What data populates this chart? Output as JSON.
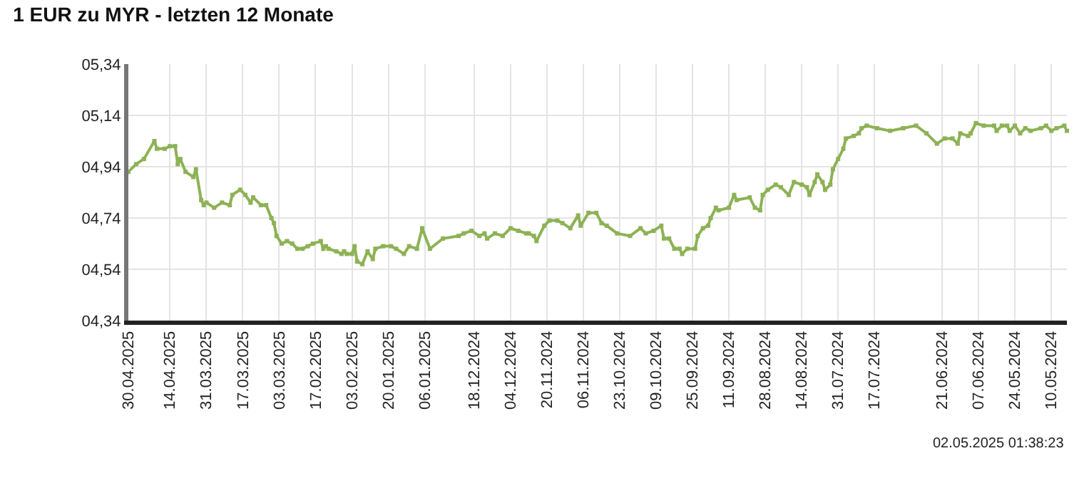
{
  "chart_data": {
    "type": "line",
    "title": "1 EUR zu MYR - letzten 12 Monate",
    "annotations": [
      "02.05.2025 01:38:23"
    ],
    "x": [
      "2025-04-30",
      "2025-04-27",
      "2025-04-24",
      "2025-04-20",
      "2025-04-19",
      "2025-04-16",
      "2025-04-14",
      "2025-04-12",
      "2025-04-11",
      "2025-04-10",
      "2025-04-08",
      "2025-04-05",
      "2025-04-04",
      "2025-04-02",
      "2025-04-01",
      "2025-03-31",
      "2025-03-28",
      "2025-03-25",
      "2025-03-22",
      "2025-03-21",
      "2025-03-18",
      "2025-03-16",
      "2025-03-14",
      "2025-03-13",
      "2025-03-10",
      "2025-03-08",
      "2025-03-06",
      "2025-03-05",
      "2025-03-04",
      "2025-03-02",
      "2025-02-28",
      "2025-02-26",
      "2025-02-24",
      "2025-02-22",
      "2025-02-20",
      "2025-02-18",
      "2025-02-15",
      "2025-02-14",
      "2025-02-13",
      "2025-02-12",
      "2025-02-09",
      "2025-02-07",
      "2025-02-06",
      "2025-02-05",
      "2025-02-03",
      "2025-02-02",
      "2025-02-01",
      "2025-01-30",
      "2025-01-28",
      "2025-01-26",
      "2025-01-25",
      "2025-01-22",
      "2025-01-19",
      "2025-01-17",
      "2025-01-14",
      "2025-01-12",
      "2025-01-09",
      "2025-01-07",
      "2025-01-04",
      "2024-12-30",
      "2024-12-24",
      "2024-12-22",
      "2024-12-19",
      "2024-12-16",
      "2024-12-14",
      "2024-12-13",
      "2024-12-10",
      "2024-12-07",
      "2024-12-04",
      "2024-12-01",
      "2024-11-28",
      "2024-11-27",
      "2024-11-25",
      "2024-11-24",
      "2024-11-21",
      "2024-11-19",
      "2024-11-16",
      "2024-11-14",
      "2024-11-11",
      "2024-11-08",
      "2024-11-07",
      "2024-11-04",
      "2024-11-01",
      "2024-10-30",
      "2024-10-28",
      "2024-10-24",
      "2024-10-19",
      "2024-10-15",
      "2024-10-13",
      "2024-10-10",
      "2024-10-07",
      "2024-10-06",
      "2024-10-04",
      "2024-10-02",
      "2024-09-30",
      "2024-09-29",
      "2024-09-27",
      "2024-09-24",
      "2024-09-23",
      "2024-09-21",
      "2024-09-19",
      "2024-09-18",
      "2024-09-16",
      "2024-09-15",
      "2024-09-11",
      "2024-09-09",
      "2024-09-08",
      "2024-09-03",
      "2024-09-01",
      "2024-08-30",
      "2024-08-29",
      "2024-08-27",
      "2024-08-24",
      "2024-08-22",
      "2024-08-19",
      "2024-08-17",
      "2024-08-14",
      "2024-08-12",
      "2024-08-11",
      "2024-08-09",
      "2024-08-08",
      "2024-08-06",
      "2024-08-05",
      "2024-08-03",
      "2024-08-02",
      "2024-07-31",
      "2024-07-29",
      "2024-07-28",
      "2024-07-25",
      "2024-07-23",
      "2024-07-22",
      "2024-07-20",
      "2024-07-16",
      "2024-07-11",
      "2024-07-06",
      "2024-07-01",
      "2024-06-27",
      "2024-06-23",
      "2024-06-20",
      "2024-06-17",
      "2024-06-15",
      "2024-06-14",
      "2024-06-11",
      "2024-06-10",
      "2024-06-08",
      "2024-06-05",
      "2024-06-01",
      "2024-05-31",
      "2024-05-29",
      "2024-05-27",
      "2024-05-26",
      "2024-05-24",
      "2024-05-22",
      "2024-05-20",
      "2024-05-18",
      "2024-05-14",
      "2024-05-12",
      "2024-05-10",
      "2024-05-08",
      "2024-05-05",
      "2024-05-04"
    ],
    "series": [
      {
        "color": "#8db255",
        "values": [
          4.92,
          4.95,
          4.97,
          5.04,
          5.01,
          5.01,
          5.02,
          5.02,
          4.95,
          4.97,
          4.92,
          4.9,
          4.93,
          4.81,
          4.79,
          4.8,
          4.78,
          4.8,
          4.79,
          4.83,
          4.85,
          4.83,
          4.8,
          4.82,
          4.79,
          4.79,
          4.74,
          4.72,
          4.67,
          4.64,
          4.65,
          4.64,
          4.62,
          4.62,
          4.63,
          4.64,
          4.65,
          4.62,
          4.63,
          4.62,
          4.61,
          4.6,
          4.61,
          4.6,
          4.6,
          4.63,
          4.57,
          4.56,
          4.61,
          4.58,
          4.62,
          4.63,
          4.63,
          4.62,
          4.6,
          4.63,
          4.62,
          4.7,
          4.62,
          4.66,
          4.67,
          4.68,
          4.69,
          4.67,
          4.68,
          4.66,
          4.68,
          4.67,
          4.7,
          4.69,
          4.68,
          4.68,
          4.67,
          4.65,
          4.71,
          4.73,
          4.73,
          4.72,
          4.7,
          4.75,
          4.71,
          4.76,
          4.76,
          4.72,
          4.71,
          4.68,
          4.67,
          4.7,
          4.68,
          4.69,
          4.71,
          4.66,
          4.66,
          4.62,
          4.62,
          4.6,
          4.62,
          4.62,
          4.67,
          4.7,
          4.71,
          4.74,
          4.78,
          4.77,
          4.78,
          4.83,
          4.81,
          4.82,
          4.78,
          4.77,
          4.83,
          4.85,
          4.87,
          4.86,
          4.83,
          4.88,
          4.87,
          4.86,
          4.83,
          4.88,
          4.91,
          4.88,
          4.85,
          4.87,
          4.93,
          4.97,
          5.01,
          5.05,
          5.06,
          5.07,
          5.09,
          5.1,
          5.09,
          5.08,
          5.09,
          5.1,
          5.07,
          5.03,
          5.05,
          5.05,
          5.03,
          5.07,
          5.06,
          5.07,
          5.11,
          5.1,
          5.1,
          5.08,
          5.1,
          5.1,
          5.08,
          5.1,
          5.07,
          5.09,
          5.08,
          5.09,
          5.1,
          5.08,
          5.09,
          5.1,
          5.08
        ]
      }
    ],
    "xlim": [
      "2025-04-30",
      "2024-05-04"
    ],
    "xticks": [
      {
        "value": "2025-04-30",
        "label": "30.04.2025"
      },
      {
        "value": "2025-04-14",
        "label": "14.04.2025"
      },
      {
        "value": "2025-03-31",
        "label": "31.03.2025"
      },
      {
        "value": "2025-03-17",
        "label": "17.03.2025"
      },
      {
        "value": "2025-03-03",
        "label": "03.03.2025"
      },
      {
        "value": "2025-02-17",
        "label": "17.02.2025"
      },
      {
        "value": "2025-02-03",
        "label": "03.02.2025"
      },
      {
        "value": "2025-01-20",
        "label": "20.01.2025"
      },
      {
        "value": "2025-01-06",
        "label": "06.01.2025"
      },
      {
        "value": "2024-12-18",
        "label": "18.12.2024"
      },
      {
        "value": "2024-12-04",
        "label": "04.12.2024"
      },
      {
        "value": "2024-11-20",
        "label": "20.11.2024"
      },
      {
        "value": "2024-11-06",
        "label": "06.11.2024"
      },
      {
        "value": "2024-10-23",
        "label": "23.10.2024"
      },
      {
        "value": "2024-10-09",
        "label": "09.10.2024"
      },
      {
        "value": "2024-09-25",
        "label": "25.09.2024"
      },
      {
        "value": "2024-09-11",
        "label": "11.09.2024"
      },
      {
        "value": "2024-08-28",
        "label": "28.08.2024"
      },
      {
        "value": "2024-08-14",
        "label": "14.08.2024"
      },
      {
        "value": "2024-07-31",
        "label": "31.07.2024"
      },
      {
        "value": "2024-07-17",
        "label": "17.07.2024"
      },
      {
        "value": "2024-06-21",
        "label": "21.06.2024"
      },
      {
        "value": "2024-06-07",
        "label": "07.06.2024"
      },
      {
        "value": "2024-05-24",
        "label": "24.05.2024"
      },
      {
        "value": "2024-05-10",
        "label": "10.05.2024"
      }
    ],
    "ylim": [
      4.34,
      5.34
    ],
    "yticks": [
      {
        "value": 4.34,
        "label": "04,34"
      },
      {
        "value": 4.54,
        "label": "04,54"
      },
      {
        "value": 4.74,
        "label": "04,74"
      },
      {
        "value": 4.94,
        "label": "04,94"
      },
      {
        "value": 5.14,
        "label": "05,14"
      },
      {
        "value": 5.34,
        "label": "05,34"
      }
    ],
    "grid": true,
    "marker": "square",
    "line_style": "solid"
  }
}
